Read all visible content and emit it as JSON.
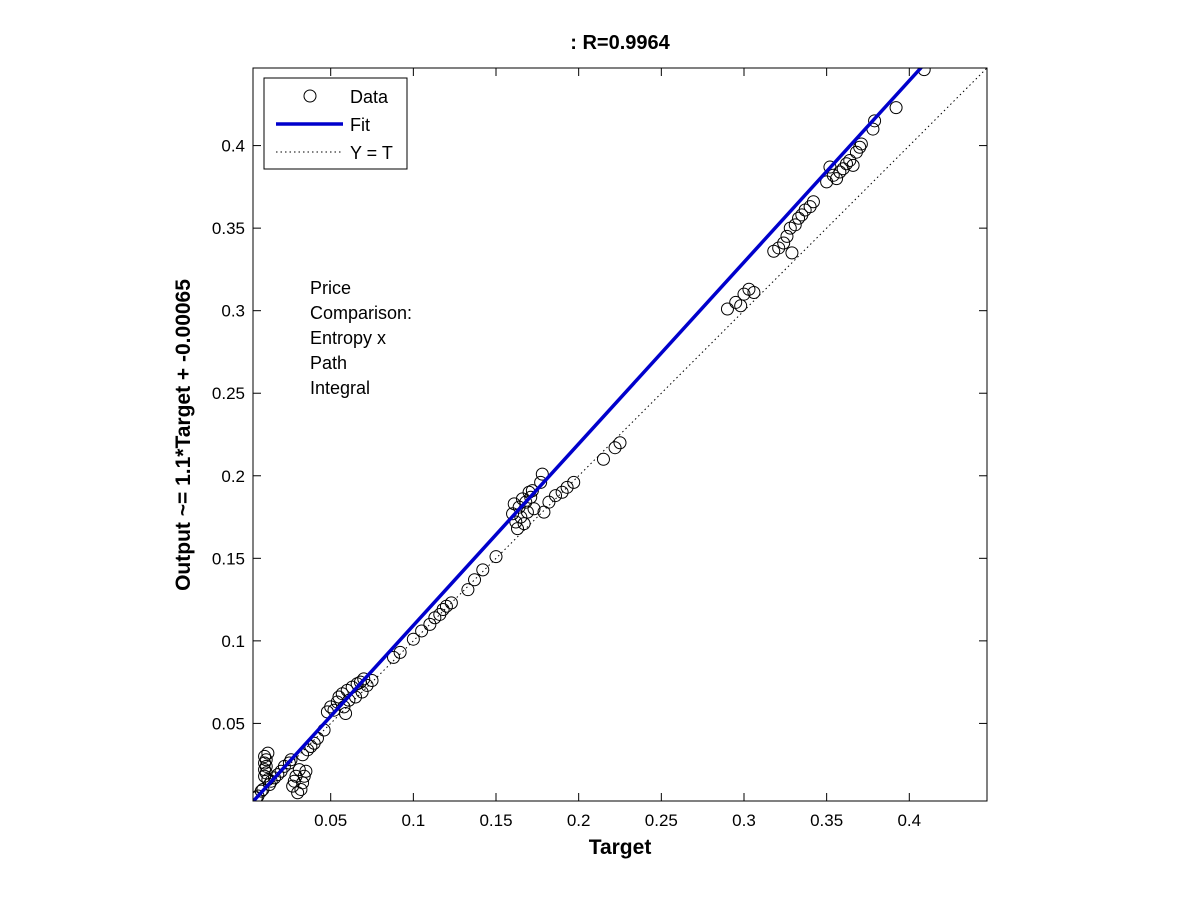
{
  "chart_data": {
    "type": "scatter",
    "title": ": R=0.9964",
    "xlabel": "Target",
    "ylabel": "Output ~= 1.1*Target + -0.00065",
    "xlim": [
      0.003,
      0.447
    ],
    "ylim": [
      0.003,
      0.447
    ],
    "xticks": [
      0.05,
      0.1,
      0.15,
      0.2,
      0.25,
      0.3,
      0.35,
      0.4
    ],
    "yticks": [
      0.05,
      0.1,
      0.15,
      0.2,
      0.25,
      0.3,
      0.35,
      0.4
    ],
    "grid": false,
    "legend_position": "top-left",
    "annotation_lines": [
      "Price",
      "Comparison:",
      "Entropy x",
      "Path",
      "Integral"
    ],
    "colors": {
      "data": "#000000",
      "fit": "#0000cc",
      "identity": "#000000"
    },
    "series": [
      {
        "name": "Data",
        "kind": "scatter",
        "points": [
          [
            0.005,
            0.005
          ],
          [
            0.006,
            0.006
          ],
          [
            0.008,
            0.009
          ],
          [
            0.009,
            0.01
          ],
          [
            0.01,
            0.018
          ],
          [
            0.01,
            0.022
          ],
          [
            0.01,
            0.026
          ],
          [
            0.01,
            0.03
          ],
          [
            0.011,
            0.02
          ],
          [
            0.011,
            0.024
          ],
          [
            0.011,
            0.028
          ],
          [
            0.012,
            0.032
          ],
          [
            0.012,
            0.016
          ],
          [
            0.013,
            0.013
          ],
          [
            0.014,
            0.015
          ],
          [
            0.016,
            0.017
          ],
          [
            0.018,
            0.019
          ],
          [
            0.02,
            0.021
          ],
          [
            0.022,
            0.024
          ],
          [
            0.025,
            0.026
          ],
          [
            0.026,
            0.028
          ],
          [
            0.027,
            0.012
          ],
          [
            0.028,
            0.015
          ],
          [
            0.029,
            0.018
          ],
          [
            0.03,
            0.008
          ],
          [
            0.031,
            0.022
          ],
          [
            0.032,
            0.01
          ],
          [
            0.033,
            0.014
          ],
          [
            0.033,
            0.031
          ],
          [
            0.034,
            0.018
          ],
          [
            0.035,
            0.021
          ],
          [
            0.036,
            0.034
          ],
          [
            0.038,
            0.036
          ],
          [
            0.04,
            0.038
          ],
          [
            0.042,
            0.041
          ],
          [
            0.046,
            0.046
          ],
          [
            0.048,
            0.057
          ],
          [
            0.05,
            0.06
          ],
          [
            0.052,
            0.058
          ],
          [
            0.054,
            0.063
          ],
          [
            0.055,
            0.066
          ],
          [
            0.057,
            0.068
          ],
          [
            0.058,
            0.06
          ],
          [
            0.059,
            0.056
          ],
          [
            0.06,
            0.07
          ],
          [
            0.061,
            0.064
          ],
          [
            0.063,
            0.072
          ],
          [
            0.065,
            0.066
          ],
          [
            0.066,
            0.074
          ],
          [
            0.068,
            0.075
          ],
          [
            0.069,
            0.069
          ],
          [
            0.07,
            0.077
          ],
          [
            0.072,
            0.073
          ],
          [
            0.075,
            0.076
          ],
          [
            0.088,
            0.09
          ],
          [
            0.092,
            0.093
          ],
          [
            0.1,
            0.101
          ],
          [
            0.105,
            0.106
          ],
          [
            0.11,
            0.11
          ],
          [
            0.113,
            0.114
          ],
          [
            0.116,
            0.116
          ],
          [
            0.118,
            0.119
          ],
          [
            0.12,
            0.121
          ],
          [
            0.123,
            0.123
          ],
          [
            0.133,
            0.131
          ],
          [
            0.137,
            0.137
          ],
          [
            0.142,
            0.143
          ],
          [
            0.15,
            0.151
          ],
          [
            0.16,
            0.177
          ],
          [
            0.161,
            0.183
          ],
          [
            0.162,
            0.172
          ],
          [
            0.163,
            0.168
          ],
          [
            0.164,
            0.181
          ],
          [
            0.165,
            0.175
          ],
          [
            0.166,
            0.186
          ],
          [
            0.167,
            0.171
          ],
          [
            0.168,
            0.184
          ],
          [
            0.169,
            0.178
          ],
          [
            0.17,
            0.19
          ],
          [
            0.171,
            0.187
          ],
          [
            0.172,
            0.191
          ],
          [
            0.173,
            0.18
          ],
          [
            0.177,
            0.196
          ],
          [
            0.178,
            0.201
          ],
          [
            0.179,
            0.178
          ],
          [
            0.182,
            0.184
          ],
          [
            0.186,
            0.188
          ],
          [
            0.19,
            0.19
          ],
          [
            0.193,
            0.193
          ],
          [
            0.197,
            0.196
          ],
          [
            0.215,
            0.21
          ],
          [
            0.222,
            0.217
          ],
          [
            0.225,
            0.22
          ],
          [
            0.29,
            0.301
          ],
          [
            0.295,
            0.305
          ],
          [
            0.298,
            0.303
          ],
          [
            0.3,
            0.31
          ],
          [
            0.303,
            0.313
          ],
          [
            0.306,
            0.311
          ],
          [
            0.318,
            0.336
          ],
          [
            0.321,
            0.338
          ],
          [
            0.324,
            0.341
          ],
          [
            0.326,
            0.345
          ],
          [
            0.328,
            0.35
          ],
          [
            0.329,
            0.335
          ],
          [
            0.331,
            0.352
          ],
          [
            0.333,
            0.356
          ],
          [
            0.335,
            0.358
          ],
          [
            0.337,
            0.361
          ],
          [
            0.34,
            0.363
          ],
          [
            0.342,
            0.366
          ],
          [
            0.35,
            0.378
          ],
          [
            0.352,
            0.387
          ],
          [
            0.354,
            0.382
          ],
          [
            0.356,
            0.38
          ],
          [
            0.358,
            0.384
          ],
          [
            0.36,
            0.386
          ],
          [
            0.362,
            0.389
          ],
          [
            0.364,
            0.391
          ],
          [
            0.366,
            0.388
          ],
          [
            0.368,
            0.396
          ],
          [
            0.37,
            0.399
          ],
          [
            0.371,
            0.401
          ],
          [
            0.378,
            0.41
          ],
          [
            0.379,
            0.415
          ],
          [
            0.392,
            0.423
          ],
          [
            0.409,
            0.446
          ]
        ]
      },
      {
        "name": "Fit",
        "kind": "line",
        "slope": 1.1,
        "intercept": -0.00065
      },
      {
        "name": "Y = T",
        "kind": "line",
        "slope": 1,
        "intercept": 0
      }
    ]
  }
}
